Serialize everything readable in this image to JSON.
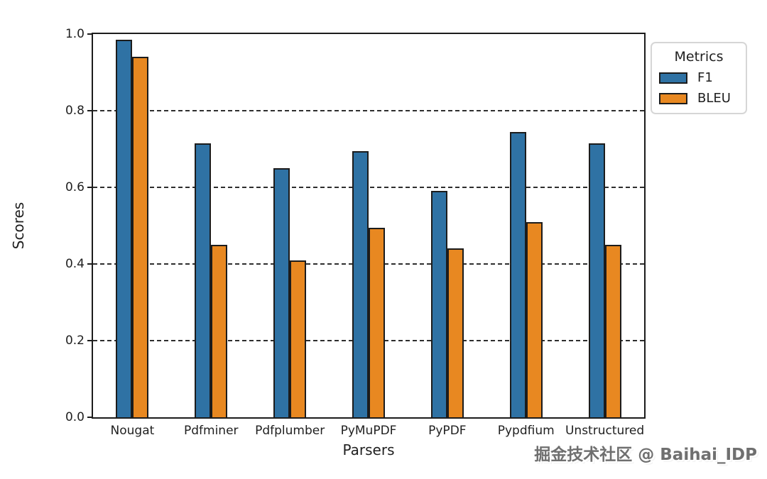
{
  "watermark": "掘金技术社区 @ Baihai_IDP",
  "chart_data": {
    "type": "bar",
    "title": "",
    "xlabel": "Parsers",
    "ylabel": "Scores",
    "categories": [
      "Nougat",
      "Pdfminer",
      "Pdfplumber",
      "PyMuPDF",
      "PyPDF",
      "Pypdfium",
      "Unstructured"
    ],
    "series": [
      {
        "name": "F1",
        "color": "#2f72a4",
        "values": [
          0.985,
          0.715,
          0.65,
          0.695,
          0.59,
          0.745,
          0.715
        ]
      },
      {
        "name": "BLEU",
        "color": "#e88821",
        "values": [
          0.94,
          0.45,
          0.41,
          0.495,
          0.44,
          0.51,
          0.45
        ]
      }
    ],
    "ylim": [
      0.0,
      1.0
    ],
    "yticks": [
      0.0,
      0.2,
      0.4,
      0.6,
      0.8,
      1.0
    ],
    "gridlines": [
      0.2,
      0.4,
      0.6,
      0.8
    ],
    "grid_style": "horizontal dashed black",
    "legend": {
      "title": "Metrics",
      "position": "upper right, outside axes"
    },
    "edge_color": "#1c1c1c"
  }
}
